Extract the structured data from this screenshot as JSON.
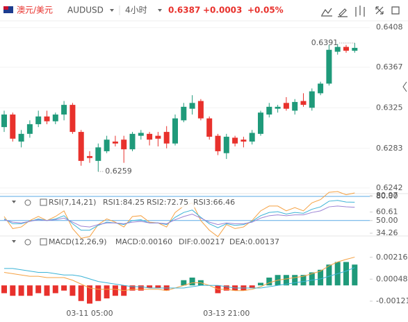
{
  "header": {
    "pair": "澳元/美元",
    "symbol": "AUDUSD",
    "interval": "4小时",
    "price": "0.6387",
    "change": "+0.0003",
    "change_pct": "+0.05%"
  },
  "chart_data": [
    {
      "type": "candlestick",
      "up_color": "#1f9a7a",
      "down_color": "#e8312c",
      "open": [
        0.6305,
        0.6318,
        0.629,
        0.6298,
        0.6308,
        0.6316,
        0.6311,
        0.6318,
        0.6328,
        0.63,
        0.6275,
        0.627,
        0.628,
        0.629,
        0.6292,
        0.6282,
        0.6296,
        0.6298,
        0.6296,
        0.63,
        0.6288,
        0.6312,
        0.6324,
        0.6332,
        0.6314,
        0.6296,
        0.6278,
        0.6294,
        0.6292,
        0.629,
        0.6298,
        0.6318,
        0.6324,
        0.633,
        0.6322,
        0.6332,
        0.6325,
        0.634,
        0.635,
        0.6383,
        0.6388,
        0.6384
      ],
      "high": [
        0.6322,
        0.632,
        0.6302,
        0.6312,
        0.6322,
        0.6322,
        0.632,
        0.6332,
        0.633,
        0.6302,
        0.628,
        0.6288,
        0.6296,
        0.6296,
        0.6296,
        0.63,
        0.6302,
        0.63,
        0.63,
        0.6306,
        0.6318,
        0.633,
        0.6338,
        0.6334,
        0.6316,
        0.6298,
        0.6298,
        0.6296,
        0.6295,
        0.6302,
        0.6322,
        0.633,
        0.6328,
        0.6336,
        0.6334,
        0.634,
        0.6345,
        0.6352,
        0.639,
        0.6391,
        0.639,
        0.6392
      ],
      "low": [
        0.63,
        0.629,
        0.6284,
        0.6294,
        0.6305,
        0.6308,
        0.6308,
        0.6312,
        0.6298,
        0.6265,
        0.6268,
        0.6259,
        0.6278,
        0.6285,
        0.6268,
        0.628,
        0.6292,
        0.6286,
        0.6285,
        0.6283,
        0.6286,
        0.631,
        0.6318,
        0.6312,
        0.6292,
        0.6276,
        0.6272,
        0.6285,
        0.6284,
        0.6287,
        0.6296,
        0.6315,
        0.632,
        0.6322,
        0.6318,
        0.6326,
        0.6322,
        0.6338,
        0.6348,
        0.638,
        0.6382,
        0.6382
      ],
      "close": [
        0.6318,
        0.6293,
        0.6298,
        0.6308,
        0.6316,
        0.6311,
        0.6318,
        0.6328,
        0.63,
        0.627,
        0.6273,
        0.6284,
        0.6292,
        0.6288,
        0.6282,
        0.6298,
        0.6299,
        0.6292,
        0.6293,
        0.6288,
        0.6314,
        0.6326,
        0.633,
        0.6314,
        0.6295,
        0.628,
        0.6295,
        0.6288,
        0.629,
        0.6299,
        0.632,
        0.6326,
        0.6326,
        0.6324,
        0.6331,
        0.6328,
        0.6342,
        0.635,
        0.6385,
        0.6388,
        0.6384,
        0.6387
      ],
      "ylim": [
        0.6239,
        0.6415
      ],
      "yticks": [
        0.6408,
        0.6367,
        0.6325,
        0.6283,
        0.6242
      ],
      "high_label": "0.6391",
      "low_label": "0.6259"
    },
    {
      "type": "line",
      "title": "RSI(7,14,21)",
      "ylim": [
        30,
        86
      ],
      "yticks": [
        {
          "value": 80,
          "label": "80.00"
        },
        80.97,
        60.61,
        {
          "value": 50,
          "label": "50.00"
        },
        34.26
      ],
      "hlines": [
        80,
        50
      ],
      "hline_color": "#5aa9e6",
      "series": [
        {
          "name": "RSI1:84.25",
          "color": "#f5a142",
          "values": [
            55,
            40,
            42,
            50,
            55,
            50,
            55,
            62,
            40,
            28,
            30,
            45,
            52,
            48,
            42,
            55,
            56,
            48,
            47,
            42,
            60,
            68,
            72,
            50,
            38,
            30,
            45,
            40,
            42,
            50,
            62,
            68,
            68,
            62,
            66,
            62,
            72,
            76,
            85,
            86,
            82,
            84.25
          ]
        },
        {
          "name": "RSI2:72.75",
          "color": "#3bb3d6",
          "values": [
            52,
            46,
            46,
            49,
            52,
            50,
            52,
            56,
            46,
            38,
            38,
            44,
            48,
            47,
            45,
            50,
            51,
            47,
            47,
            45,
            54,
            60,
            63,
            54,
            46,
            41,
            46,
            44,
            45,
            49,
            56,
            60,
            61,
            58,
            60,
            59,
            64,
            67,
            74,
            75,
            73,
            72.75
          ]
        },
        {
          "name": "RSI3:66.46",
          "color": "#9b82d4",
          "values": [
            51,
            48,
            47,
            49,
            51,
            50,
            51,
            53,
            48,
            43,
            42,
            45,
            47,
            47,
            46,
            48,
            49,
            47,
            47,
            46,
            51,
            55,
            58,
            53,
            48,
            45,
            47,
            46,
            46,
            48,
            53,
            56,
            57,
            56,
            57,
            57,
            60,
            62,
            67,
            68,
            67,
            66.46
          ]
        }
      ]
    },
    {
      "type": "macd",
      "title": "MACD(12,26,9)",
      "ylim": [
        -0.0018,
        0.003
      ],
      "yticks": [
        0.00216,
        0.00048,
        -0.00121
      ],
      "categories": [
        null,
        null,
        null,
        null,
        null,
        null,
        null,
        null,
        null,
        null,
        "03-11 05:00",
        null,
        null,
        null,
        null,
        null,
        null,
        null,
        null,
        null,
        null,
        null,
        null,
        null,
        null,
        null,
        "03-13 21:00",
        null,
        null,
        null,
        null,
        null,
        null,
        null,
        null,
        null,
        null,
        null,
        null,
        null,
        null,
        null
      ],
      "bars": {
        "name": "MACD:0.00160",
        "color": "#9b82d4",
        "up_color": "#1f9a7a",
        "down_color": "#e8312c",
        "values": [
          -0.0006,
          -0.0008,
          -0.0008,
          -0.0008,
          -0.0006,
          -0.0008,
          -0.0006,
          -0.0004,
          -0.0008,
          -0.0012,
          -0.0014,
          -0.0012,
          -0.001,
          -0.0008,
          -0.0008,
          -0.0004,
          -0.0004,
          -0.0002,
          -0.0002,
          -0.0004,
          0,
          0.0004,
          0.0006,
          0.0004,
          0,
          -0.0006,
          -0.0004,
          -0.0004,
          -0.0004,
          -0.0002,
          0.0002,
          0.0006,
          0.0008,
          0.0008,
          0.0008,
          0.0008,
          0.001,
          0.0012,
          0.0016,
          0.0018,
          0.0018,
          0.0016
        ]
      },
      "series": [
        {
          "name": "DIF:0.00217",
          "color": "#f5a142",
          "values": [
            0.001,
            0.0009,
            0.0008,
            0.0007,
            0.0007,
            0.0006,
            0.0006,
            0.0006,
            0.0004,
            0.0001,
            -0.0002,
            -0.0003,
            -0.0003,
            -0.0003,
            -0.0004,
            -0.0003,
            -0.0003,
            -0.0003,
            -0.0003,
            -0.0004,
            -0.0002,
            0,
            0.0002,
            0.0002,
            0,
            -0.0003,
            -0.0003,
            -0.0004,
            -0.0004,
            -0.0003,
            -0.0001,
            0.0002,
            0.0004,
            0.0005,
            0.0006,
            0.0007,
            0.0009,
            0.0011,
            0.0015,
            0.0018,
            0.002,
            0.00217
          ]
        },
        {
          "name": "DEA:0.00137",
          "color": "#3bb3d6",
          "values": [
            0.0013,
            0.0013,
            0.0012,
            0.0011,
            0.001,
            0.001,
            0.0009,
            0.0008,
            0.0008,
            0.0007,
            0.0005,
            0.0003,
            0.0002,
            0.0001,
            0,
            -0.0001,
            -0.0001,
            -0.0002,
            -0.0002,
            -0.0002,
            -0.0002,
            -0.0002,
            -0.0001,
            0,
            0,
            0,
            -0.0001,
            -0.0002,
            -0.0002,
            -0.0002,
            -0.0002,
            -0.0001,
            0,
            0.0001,
            0.0002,
            0.0003,
            0.0004,
            0.0005,
            0.0007,
            0.0009,
            0.0011,
            0.00137
          ]
        }
      ]
    }
  ]
}
